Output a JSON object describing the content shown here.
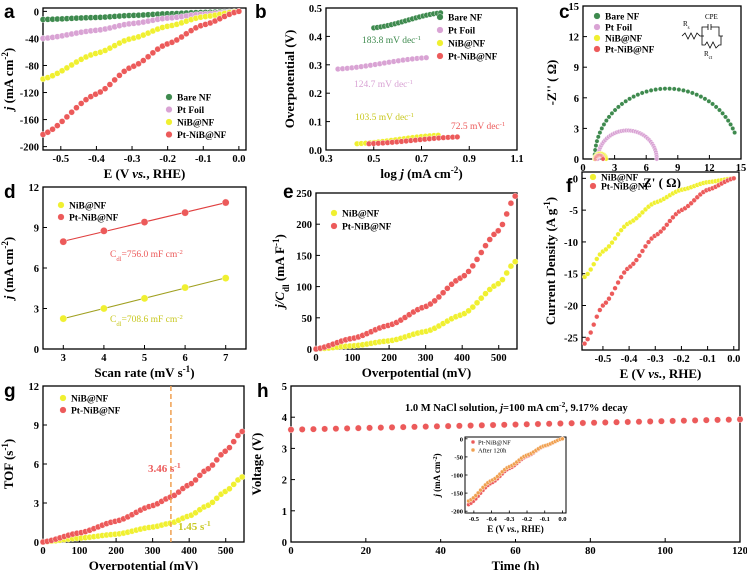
{
  "colors": {
    "green": "#3e8a4e",
    "pink": "#d9a3d4",
    "yellow": "#f0f030",
    "red": "#ec5a5a",
    "orange": "#f0a050",
    "fit": "#a0a020"
  },
  "chart_data": [
    {
      "id": "a",
      "label": "a",
      "type": "line",
      "xlabel_parts": [
        "E (V ",
        "vs.",
        ", RHE)"
      ],
      "ylabel_parts": [
        "j",
        " (mA cm",
        "-2",
        ")"
      ],
      "xlim": [
        -0.55,
        0.02
      ],
      "ylim": [
        -205,
        5
      ],
      "xticks": [
        "-0.5",
        "-0.4",
        "-0.3",
        "-0.2",
        "-0.1",
        "0.0"
      ],
      "yticks": [
        "0",
        "-40",
        "-80",
        "-120",
        "-160",
        "-200"
      ],
      "legend": [
        "Bare NF",
        "Pt Foil",
        "NiB@NF",
        "Pt-NiB@NF"
      ],
      "series": [
        {
          "name": "Bare NF",
          "x": [
            -0.55,
            -0.4,
            -0.3,
            -0.2,
            -0.1,
            0.0
          ],
          "y": [
            -12,
            -9,
            -6,
            -3.5,
            -1.5,
            0
          ]
        },
        {
          "name": "Pt Foil",
          "x": [
            -0.55,
            -0.4,
            -0.3,
            -0.2,
            -0.1,
            0.0
          ],
          "y": [
            -40,
            -28,
            -18,
            -10,
            -4,
            0
          ]
        },
        {
          "name": "NiB@NF",
          "x": [
            -0.55,
            -0.4,
            -0.3,
            -0.2,
            -0.1,
            0.0
          ],
          "y": [
            -100,
            -62,
            -40,
            -22,
            -8,
            0
          ]
        },
        {
          "name": "Pt-NiB@NF",
          "x": [
            -0.55,
            -0.4,
            -0.3,
            -0.2,
            -0.1,
            0.0
          ],
          "y": [
            -182,
            -122,
            -82,
            -48,
            -20,
            0
          ]
        }
      ]
    },
    {
      "id": "b",
      "label": "b",
      "type": "line",
      "xlabel_parts": [
        "log ",
        "j",
        " (mA cm",
        "-2",
        ")"
      ],
      "ylabel_parts": [
        "Overpotential (V)"
      ],
      "xlim": [
        0.3,
        1.1
      ],
      "ylim": [
        0.0,
        0.5
      ],
      "xticks": [
        "0.3",
        "0.5",
        "0.7",
        "0.9",
        "1.1"
      ],
      "yticks": [
        "0.0",
        "0.1",
        "0.2",
        "0.3",
        "0.4",
        "0.5"
      ],
      "legend": [
        "Bare NF",
        "Pt Foil",
        "NiB@NF",
        "Pt-NiB@NF"
      ],
      "series": [
        {
          "name": "Bare NF",
          "x": [
            0.5,
            0.78
          ],
          "y": [
            0.43,
            0.483
          ]
        },
        {
          "name": "Pt Foil",
          "x": [
            0.35,
            0.72
          ],
          "y": [
            0.285,
            0.325
          ]
        },
        {
          "name": "NiB@NF",
          "x": [
            0.43,
            0.77
          ],
          "y": [
            0.022,
            0.052
          ]
        },
        {
          "name": "Pt-NiB@NF",
          "x": [
            0.48,
            0.85
          ],
          "y": [
            0.022,
            0.046
          ]
        }
      ],
      "annotations": [
        "183.8 mV dec",
        "124.7 mV dec",
        "103.5 mV dec",
        "72.5 mV dec"
      ],
      "ann_sup": "-1"
    },
    {
      "id": "c",
      "label": "c",
      "type": "scatter",
      "xlabel_parts": [
        "Z' ( Ω)"
      ],
      "ylabel_parts": [
        "-Z'' ( Ω)"
      ],
      "xlim": [
        0,
        15
      ],
      "ylim": [
        0,
        15
      ],
      "xticks": [
        "0",
        "3",
        "6",
        "9",
        "12",
        "15"
      ],
      "yticks": [
        "0",
        "3",
        "6",
        "9",
        "12",
        "15"
      ],
      "legend": [
        "Bare NF",
        "Pt Foil",
        "NiB@NF",
        "Pt-NiB@NF"
      ],
      "series": [
        {
          "name": "Bare NF",
          "center": 8,
          "radius": 6.9,
          "xmax": 14.5
        },
        {
          "name": "Pt Foil",
          "center": 4.2,
          "radius": 2.8
        },
        {
          "name": "NiB@NF",
          "center": 1.65,
          "radius": 0.55
        },
        {
          "name": "Pt-NiB@NF",
          "center": 1.55,
          "radius": 0.35
        }
      ],
      "circuit": [
        "Rs",
        "CPE",
        "Rct"
      ]
    },
    {
      "id": "d",
      "label": "d",
      "type": "scatter",
      "xlabel_parts": [
        "Scan rate (mV s",
        "-1",
        ")"
      ],
      "ylabel_parts": [
        "j",
        " (mA cm",
        "-2",
        ")"
      ],
      "xlim": [
        2.5,
        7.5
      ],
      "ylim": [
        0,
        12
      ],
      "xticks": [
        "3",
        "4",
        "5",
        "6",
        "7"
      ],
      "yticks": [
        "0",
        "3",
        "6",
        "9",
        "12"
      ],
      "legend": [
        "NiB@NF",
        "Pt-NiB@NF"
      ],
      "series": [
        {
          "name": "NiB@NF",
          "x": [
            3,
            4,
            5,
            6,
            7
          ],
          "y": [
            2.25,
            3.0,
            3.75,
            4.55,
            5.25
          ]
        },
        {
          "name": "Pt-NiB@NF",
          "x": [
            3,
            4,
            5,
            6,
            7
          ],
          "y": [
            7.95,
            8.75,
            9.4,
            10.1,
            10.85
          ]
        }
      ],
      "annotations": [
        "C",
        "dl",
        "=756.0 mF cm",
        "-2",
        "=708.6 mF cm"
      ]
    },
    {
      "id": "e",
      "label": "e",
      "type": "line",
      "xlabel_parts": [
        "Overpotential (mV)"
      ],
      "ylabel_parts": [
        "j/C",
        "dl",
        " (mA F",
        "-1",
        ")"
      ],
      "xlim": [
        0,
        550
      ],
      "ylim": [
        0,
        250
      ],
      "xticks": [
        "0",
        "100",
        "200",
        "300",
        "400",
        "500"
      ],
      "yticks": [
        "0",
        "50",
        "100",
        "150",
        "200",
        "250"
      ],
      "legend": [
        "NiB@NF",
        "Pt-NiB@NF"
      ],
      "series": [
        {
          "name": "NiB@NF",
          "x": [
            0,
            100,
            200,
            300,
            400,
            500,
            545
          ],
          "y": [
            0,
            5,
            13,
            28,
            55,
            105,
            140
          ]
        },
        {
          "name": "Pt-NiB@NF",
          "x": [
            0,
            100,
            200,
            300,
            400,
            500,
            545
          ],
          "y": [
            0,
            17,
            38,
            68,
            115,
            190,
            245
          ]
        }
      ]
    },
    {
      "id": "f",
      "label": "f",
      "type": "line",
      "xlabel_parts": [
        "E (V ",
        "vs.",
        ", RHE)"
      ],
      "ylabel_parts": [
        "Current Density (A g",
        "-1",
        ")"
      ],
      "xlim": [
        -0.58,
        0.02
      ],
      "ylim": [
        -27,
        1
      ],
      "xticks": [
        "-0.5",
        "-0.4",
        "-0.3",
        "-0.2",
        "-0.1",
        "0.0"
      ],
      "yticks": [
        "0",
        "-5",
        "-10",
        "-15",
        "-20",
        "-25"
      ],
      "legend": [
        "NiB@NF",
        "Pt-NiB@NF"
      ],
      "series": [
        {
          "name": "NiB@NF",
          "x": [
            -0.57,
            -0.5,
            -0.4,
            -0.3,
            -0.2,
            -0.1,
            0.0
          ],
          "y": [
            -15.5,
            -11.5,
            -7,
            -3.8,
            -1.8,
            -0.6,
            0
          ]
        },
        {
          "name": "Pt-NiB@NF",
          "x": [
            -0.57,
            -0.5,
            -0.4,
            -0.3,
            -0.2,
            -0.1,
            0.0
          ],
          "y": [
            -26,
            -20,
            -14,
            -9,
            -5,
            -1.8,
            0
          ]
        }
      ]
    },
    {
      "id": "g",
      "label": "g",
      "type": "line",
      "xlabel_parts": [
        "Overpotential (mV)"
      ],
      "ylabel_parts": [
        "TOF (s",
        "-1",
        ")"
      ],
      "xlim": [
        0,
        550
      ],
      "ylim": [
        0,
        12
      ],
      "xticks": [
        "0",
        "100",
        "200",
        "300",
        "400",
        "500"
      ],
      "yticks": [
        "0",
        "3",
        "6",
        "9",
        "12"
      ],
      "legend": [
        "NiB@NF",
        "Pt-NiB@NF"
      ],
      "series": [
        {
          "name": "NiB@NF",
          "x": [
            0,
            100,
            200,
            300,
            350,
            400,
            450,
            500,
            545
          ],
          "y": [
            0,
            0.3,
            0.6,
            1.15,
            1.45,
            2.0,
            2.8,
            3.9,
            5.0
          ]
        },
        {
          "name": "Pt-NiB@NF",
          "x": [
            0,
            100,
            200,
            300,
            350,
            400,
            450,
            500,
            545
          ],
          "y": [
            0,
            0.7,
            1.6,
            2.8,
            3.46,
            4.4,
            5.6,
            7.0,
            8.5
          ]
        }
      ],
      "vline": 350,
      "annotations": [
        "3.46 s",
        "1.45 s"
      ],
      "ann_sup": "-1"
    },
    {
      "id": "h",
      "label": "h",
      "type": "line",
      "xlabel_parts": [
        "Time (h)"
      ],
      "ylabel_parts": [
        "Voltage (V)"
      ],
      "xlim": [
        0,
        120
      ],
      "ylim": [
        0,
        5
      ],
      "xticks": [
        "0",
        "20",
        "40",
        "60",
        "80",
        "100",
        "120"
      ],
      "yticks": [
        "0",
        "1",
        "2",
        "3",
        "4",
        "5"
      ],
      "series": [
        {
          "name": "Pt-NiB@NF",
          "x": [
            0,
            120
          ],
          "y": [
            3.6,
            3.93
          ]
        }
      ],
      "note_parts": [
        "1.0 M NaCl solution, ",
        "j",
        "=100 mA cm",
        "-2",
        ",   9.17% decay"
      ],
      "inset": {
        "xlabel_parts": [
          "E (V ",
          "vs.",
          ", RHE)"
        ],
        "ylabel_parts": [
          "j",
          " (mA cm",
          "-2",
          ")"
        ],
        "xlim": [
          -0.55,
          0.02
        ],
        "ylim": [
          -205,
          5
        ],
        "xticks": [
          "-0.5",
          "-0.4",
          "-0.3",
          "-0.2",
          "-0.1",
          "0.0"
        ],
        "yticks": [
          "0",
          "-50",
          "-100",
          "-150",
          "-200"
        ],
        "legend": [
          "Pt-NiB@NF",
          "After 120h"
        ],
        "series": [
          {
            "name": "Pt-NiB@NF",
            "x": [
              -0.53,
              -0.4,
              -0.3,
              -0.2,
              -0.1,
              0.0
            ],
            "y": [
              -182,
              -122,
              -82,
              -48,
              -20,
              0
            ]
          },
          {
            "name": "After 120h",
            "x": [
              -0.53,
              -0.4,
              -0.3,
              -0.2,
              -0.1,
              0.0
            ],
            "y": [
              -172,
              -115,
              -77,
              -45,
              -19,
              0
            ]
          }
        ]
      }
    }
  ]
}
